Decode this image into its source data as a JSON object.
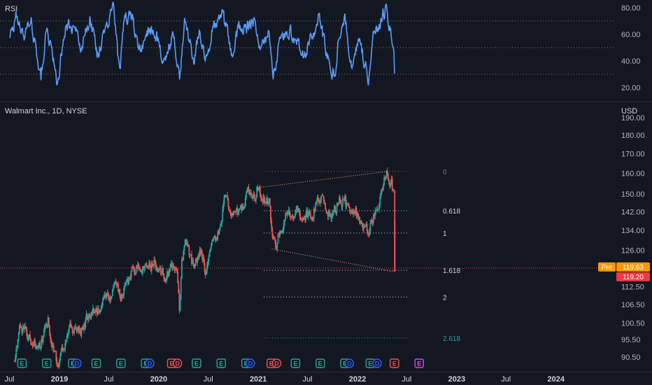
{
  "rsi_pane": {
    "title": "RSI",
    "y_ticks": [
      "80.00",
      "60.00",
      "40.00",
      "20.00"
    ],
    "tick_values": [
      80,
      60,
      40,
      20
    ],
    "guide_levels": [
      70,
      50,
      30
    ],
    "ylim": [
      11.5,
      84.3
    ],
    "line_color": "#5b9cf6"
  },
  "price_pane": {
    "title": "Walmart Inc., 1D, NYSE",
    "currency": "USD",
    "y_ticks": [
      "190.00",
      "180.00",
      "170.00",
      "160.00",
      "150.00",
      "142.00",
      "134.00",
      "126.00",
      "112.50",
      "106.50",
      "100.50",
      "95.50",
      "90.50"
    ],
    "tick_values": [
      190,
      180,
      170,
      160,
      150,
      142,
      134,
      126,
      112.5,
      106.5,
      100.5,
      95.5,
      90.5
    ],
    "price_scale": "log",
    "ylim": [
      88.8,
      190
    ]
  },
  "x_axis": {
    "labels": [
      "Jul",
      "2019",
      "Jul",
      "2020",
      "Jul",
      "2021",
      "Jul",
      "2022",
      "Jul",
      "2023",
      "Jul",
      "2024"
    ],
    "bold": [
      false,
      true,
      false,
      true,
      false,
      true,
      false,
      true,
      false,
      true,
      false,
      true
    ],
    "dates": [
      "2018-07-01",
      "2019-01-01",
      "2019-07-01",
      "2020-01-01",
      "2020-07-01",
      "2021-01-01",
      "2021-07-01",
      "2022-01-01",
      "2022-07-01",
      "2023-01-01",
      "2023-07-01",
      "2024-01-01"
    ]
  },
  "fib": {
    "levels": [
      {
        "label": "0",
        "price": 160.8,
        "color": "#787b86"
      },
      {
        "label": "0.618",
        "price": 142.4,
        "color": "#d1d4dc"
      },
      {
        "label": "1",
        "price": 132.9,
        "color": "#d1d4dc"
      },
      {
        "label": "1.618",
        "price": 118.4,
        "color": "#d1d4dc"
      },
      {
        "label": "2",
        "price": 109.0,
        "color": "#d1d4dc"
      },
      {
        "label": "2.618",
        "price": 96.0,
        "color": "#22ab94"
      }
    ],
    "start_date": "2021-01-01",
    "end_date": "2022-06-01"
  },
  "badges": {
    "pre_label": "Pre",
    "pre_price": "119.63",
    "last_price": "119.20",
    "pre_value": 119.63,
    "last_value": 119.2,
    "pre_color": "#ff9800",
    "last_color": "#f23645"
  },
  "price_line_value": 119.2,
  "wedge": [
    {
      "from": [
        "2020-12-28",
        152.9
      ],
      "to": [
        "2022-04-20",
        160.8
      ]
    },
    {
      "from": [
        "2021-02-20",
        126.5
      ],
      "to": [
        "2022-05-20",
        117.8
      ]
    }
  ],
  "events": [
    {
      "date": "2018-08-16",
      "type": "E",
      "color": "#26a69a"
    },
    {
      "date": "2018-11-15",
      "type": "E",
      "color": "#26a69a"
    },
    {
      "date": "2019-02-19",
      "type": "E",
      "color": "#26a69a"
    },
    {
      "date": "2019-03-06",
      "type": "D",
      "color": "#2962ff"
    },
    {
      "date": "2019-05-16",
      "type": "E",
      "color": "#26a69a"
    },
    {
      "date": "2019-08-15",
      "type": "E",
      "color": "#26a69a"
    },
    {
      "date": "2019-11-14",
      "type": "E",
      "color": "#26a69a"
    },
    {
      "date": "2019-11-29",
      "type": "D",
      "color": "#2962ff"
    },
    {
      "date": "2020-02-18",
      "type": "E",
      "color": "#ef5350"
    },
    {
      "date": "2020-03-10",
      "type": "D",
      "color": "#ef5350"
    },
    {
      "date": "2020-05-19",
      "type": "E",
      "color": "#26a69a"
    },
    {
      "date": "2020-08-18",
      "type": "E",
      "color": "#26a69a"
    },
    {
      "date": "2020-11-17",
      "type": "E",
      "color": "#26a69a"
    },
    {
      "date": "2020-12-03",
      "type": "D",
      "color": "#2962ff"
    },
    {
      "date": "2021-02-18",
      "type": "E",
      "color": "#ef5350"
    },
    {
      "date": "2021-03-10",
      "type": "D",
      "color": "#ef5350"
    },
    {
      "date": "2021-05-18",
      "type": "E",
      "color": "#26a69a"
    },
    {
      "date": "2021-08-17",
      "type": "E",
      "color": "#26a69a"
    },
    {
      "date": "2021-11-16",
      "type": "E",
      "color": "#26a69a"
    },
    {
      "date": "2021-12-02",
      "type": "D",
      "color": "#2962ff"
    },
    {
      "date": "2022-02-17",
      "type": "E",
      "color": "#26a69a"
    },
    {
      "date": "2022-03-14",
      "type": "D",
      "color": "#2962ff"
    },
    {
      "date": "2022-05-17",
      "type": "E",
      "color": "#ef5350"
    },
    {
      "date": "2022-08-16",
      "type": "E",
      "color": "#e040fb"
    }
  ],
  "chart_data": {
    "type": "candlestick",
    "symbol": "Walmart Inc.",
    "interval": "1D",
    "exchange": "NYSE",
    "currency": "USD",
    "price_anchors": [
      [
        "2018-07-20",
        89.5
      ],
      [
        "2018-08-10",
        99.5
      ],
      [
        "2018-09-15",
        95.5
      ],
      [
        "2018-10-20",
        93.5
      ],
      [
        "2018-11-20",
        101.0
      ],
      [
        "2018-12-24",
        87.5
      ],
      [
        "2019-02-10",
        97.5
      ],
      [
        "2019-03-20",
        98.5
      ],
      [
        "2019-04-20",
        103.5
      ],
      [
        "2019-06-01",
        104.5
      ],
      [
        "2019-07-20",
        111.5
      ],
      [
        "2019-08-20",
        109.5
      ],
      [
        "2019-09-20",
        116.5
      ],
      [
        "2019-10-20",
        119.5
      ],
      [
        "2019-11-20",
        120.5
      ],
      [
        "2019-12-20",
        120.5
      ],
      [
        "2020-01-20",
        116.5
      ],
      [
        "2020-02-15",
        118.5
      ],
      [
        "2020-03-10",
        116.0
      ],
      [
        "2020-03-18",
        103.5
      ],
      [
        "2020-03-26",
        125.5
      ],
      [
        "2020-04-10",
        128.5
      ],
      [
        "2020-05-01",
        121.5
      ],
      [
        "2020-06-01",
        123.5
      ],
      [
        "2020-06-20",
        118.5
      ],
      [
        "2020-07-15",
        130.0
      ],
      [
        "2020-08-10",
        134.0
      ],
      [
        "2020-08-20",
        141.0
      ],
      [
        "2020-09-01",
        150.0
      ],
      [
        "2020-09-20",
        142.5
      ],
      [
        "2020-10-20",
        140.5
      ],
      [
        "2020-11-20",
        149.5
      ],
      [
        "2020-12-20",
        146.0
      ],
      [
        "2020-12-29",
        152.5
      ],
      [
        "2021-01-25",
        146.5
      ],
      [
        "2021-02-10",
        145.5
      ],
      [
        "2021-02-20",
        134.5
      ],
      [
        "2021-03-05",
        126.5
      ],
      [
        "2021-03-20",
        134.0
      ],
      [
        "2021-04-20",
        139.5
      ],
      [
        "2021-05-20",
        142.5
      ],
      [
        "2021-06-10",
        138.5
      ],
      [
        "2021-07-15",
        140.5
      ],
      [
        "2021-08-01",
        145.0
      ],
      [
        "2021-08-20",
        149.0
      ],
      [
        "2021-09-10",
        144.5
      ],
      [
        "2021-10-01",
        139.5
      ],
      [
        "2021-10-20",
        146.0
      ],
      [
        "2021-11-15",
        148.0
      ],
      [
        "2021-12-01",
        139.5
      ],
      [
        "2021-12-20",
        143.0
      ],
      [
        "2022-01-05",
        140.5
      ],
      [
        "2022-01-20",
        137.5
      ],
      [
        "2022-02-10",
        132.5
      ],
      [
        "2022-02-28",
        139.5
      ],
      [
        "2022-03-20",
        143.5
      ],
      [
        "2022-04-05",
        152.5
      ],
      [
        "2022-04-20",
        160.5
      ],
      [
        "2022-05-05",
        154.5
      ],
      [
        "2022-05-16",
        148.0
      ],
      [
        "2022-05-17",
        131.0
      ],
      [
        "2022-05-18",
        118.5
      ]
    ],
    "rsi_anchors": [
      [
        "2018-07-01",
        56
      ],
      [
        "2018-07-25",
        74
      ],
      [
        "2018-08-20",
        60
      ],
      [
        "2018-09-20",
        69
      ],
      [
        "2018-10-25",
        27
      ],
      [
        "2018-11-15",
        66
      ],
      [
        "2018-12-24",
        23
      ],
      [
        "2019-01-20",
        64
      ],
      [
        "2019-02-25",
        68
      ],
      [
        "2019-03-20",
        52
      ],
      [
        "2019-04-25",
        72
      ],
      [
        "2019-05-20",
        44
      ],
      [
        "2019-06-20",
        64
      ],
      [
        "2019-07-20",
        82
      ],
      [
        "2019-08-10",
        28
      ],
      [
        "2019-08-25",
        70
      ],
      [
        "2019-09-20",
        74
      ],
      [
        "2019-10-25",
        48
      ],
      [
        "2019-11-25",
        64
      ],
      [
        "2019-12-20",
        62
      ],
      [
        "2020-01-20",
        38
      ],
      [
        "2020-02-25",
        62
      ],
      [
        "2020-03-18",
        27
      ],
      [
        "2020-04-05",
        69
      ],
      [
        "2020-05-10",
        41
      ],
      [
        "2020-06-01",
        64
      ],
      [
        "2020-06-20",
        36
      ],
      [
        "2020-07-20",
        68
      ],
      [
        "2020-08-20",
        78
      ],
      [
        "2020-09-25",
        47
      ],
      [
        "2020-10-20",
        65
      ],
      [
        "2020-11-20",
        64
      ],
      [
        "2020-12-15",
        72
      ],
      [
        "2021-01-10",
        48
      ],
      [
        "2021-02-10",
        60
      ],
      [
        "2021-02-25",
        28
      ],
      [
        "2021-03-20",
        55
      ],
      [
        "2021-04-20",
        63
      ],
      [
        "2021-05-20",
        57
      ],
      [
        "2021-06-15",
        43
      ],
      [
        "2021-07-20",
        60
      ],
      [
        "2021-08-15",
        74
      ],
      [
        "2021-09-10",
        43
      ],
      [
        "2021-10-10",
        28
      ],
      [
        "2021-10-25",
        62
      ],
      [
        "2021-11-15",
        71
      ],
      [
        "2021-12-10",
        35
      ],
      [
        "2022-01-05",
        57
      ],
      [
        "2022-02-10",
        27
      ],
      [
        "2022-03-01",
        58
      ],
      [
        "2022-03-20",
        66
      ],
      [
        "2022-04-15",
        78
      ],
      [
        "2022-05-05",
        62
      ],
      [
        "2022-05-16",
        45
      ],
      [
        "2022-05-18",
        16
      ]
    ]
  }
}
